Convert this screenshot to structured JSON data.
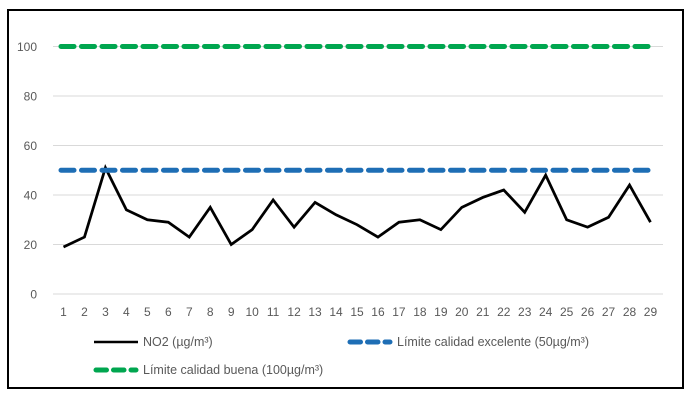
{
  "chart_data": {
    "type": "line",
    "title": "",
    "xlabel": "",
    "ylabel": "",
    "x": [
      1,
      2,
      3,
      4,
      5,
      6,
      7,
      8,
      9,
      10,
      11,
      12,
      13,
      14,
      15,
      16,
      17,
      18,
      19,
      20,
      21,
      22,
      23,
      24,
      25,
      26,
      27,
      28,
      29
    ],
    "yticks": [
      0,
      20,
      40,
      60,
      80,
      100
    ],
    "ylim": [
      0,
      110
    ],
    "grid": true,
    "legend_position": "bottom",
    "series": [
      {
        "name": "NO2 (µg/m³)",
        "type": "line",
        "style": "solid",
        "color": "#000000",
        "values": [
          19,
          23,
          51,
          34,
          30,
          29,
          23,
          35,
          20,
          26,
          38,
          27,
          37,
          32,
          28,
          23,
          29,
          30,
          26,
          35,
          39,
          42,
          33,
          48,
          30,
          27,
          31,
          44,
          29
        ]
      },
      {
        "name": "Límite calidad excelente (50µg/m³)",
        "type": "constant-line",
        "style": "dashed",
        "color": "#1E6EB5",
        "value": 50
      },
      {
        "name": "Límite calidad buena (100µg/m³)",
        "type": "constant-line",
        "style": "dashed",
        "color": "#00A64F",
        "value": 100
      }
    ]
  },
  "legend": {
    "no2": "NO2 (µg/m³)",
    "excellent": "Límite calidad excelente (50µg/m³)",
    "good": "Límite calidad buena (100µg/m³)"
  },
  "colors": {
    "no2_line": "#000000",
    "excellent_line": "#1E6EB5",
    "good_line": "#00A64F",
    "gridline": "#D9D9D9",
    "axis_text": "#595959",
    "frame_border": "#000000",
    "background": "#FFFFFF"
  }
}
